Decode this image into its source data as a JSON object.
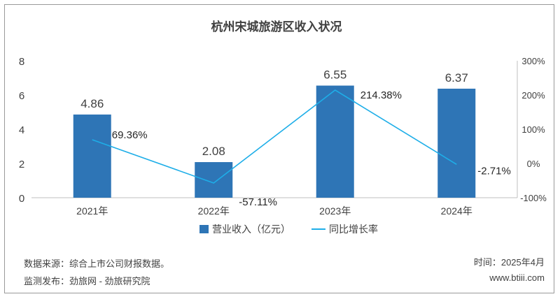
{
  "chart_data": {
    "type": "bar+line",
    "title": "杭州宋城旅游区收入状况",
    "categories": [
      "2021年",
      "2022年",
      "2023年",
      "2024年"
    ],
    "series": [
      {
        "name": "营业收入（亿元）",
        "type": "bar",
        "axis": "left",
        "color": "#2e75b6",
        "values": [
          4.86,
          2.08,
          6.55,
          6.37
        ],
        "labels": [
          "4.86",
          "2.08",
          "6.55",
          "6.37"
        ]
      },
      {
        "name": "同比增长率",
        "type": "line",
        "axis": "right",
        "color": "#1eaee8",
        "values": [
          69.36,
          -57.11,
          214.38,
          -2.71
        ],
        "labels": [
          "69.36%",
          "-57.11%",
          "214.38%",
          "-2.71%"
        ]
      }
    ],
    "left_axis": {
      "ylim": [
        0,
        8
      ],
      "ticks": [
        "0",
        "2",
        "4",
        "6",
        "8"
      ]
    },
    "right_axis": {
      "ylim": [
        -100,
        300
      ],
      "ticks": [
        "-100%",
        "0%",
        "100%",
        "200%",
        "300%"
      ]
    },
    "legend_position": "bottom",
    "grid": false
  },
  "footer": {
    "source": "数据来源：综合上市公司财报数据。",
    "publisher": "监测发布：劲旅网 - 劲旅研究院",
    "date": "时间：2025年4月",
    "website": "www.btiii.com"
  }
}
